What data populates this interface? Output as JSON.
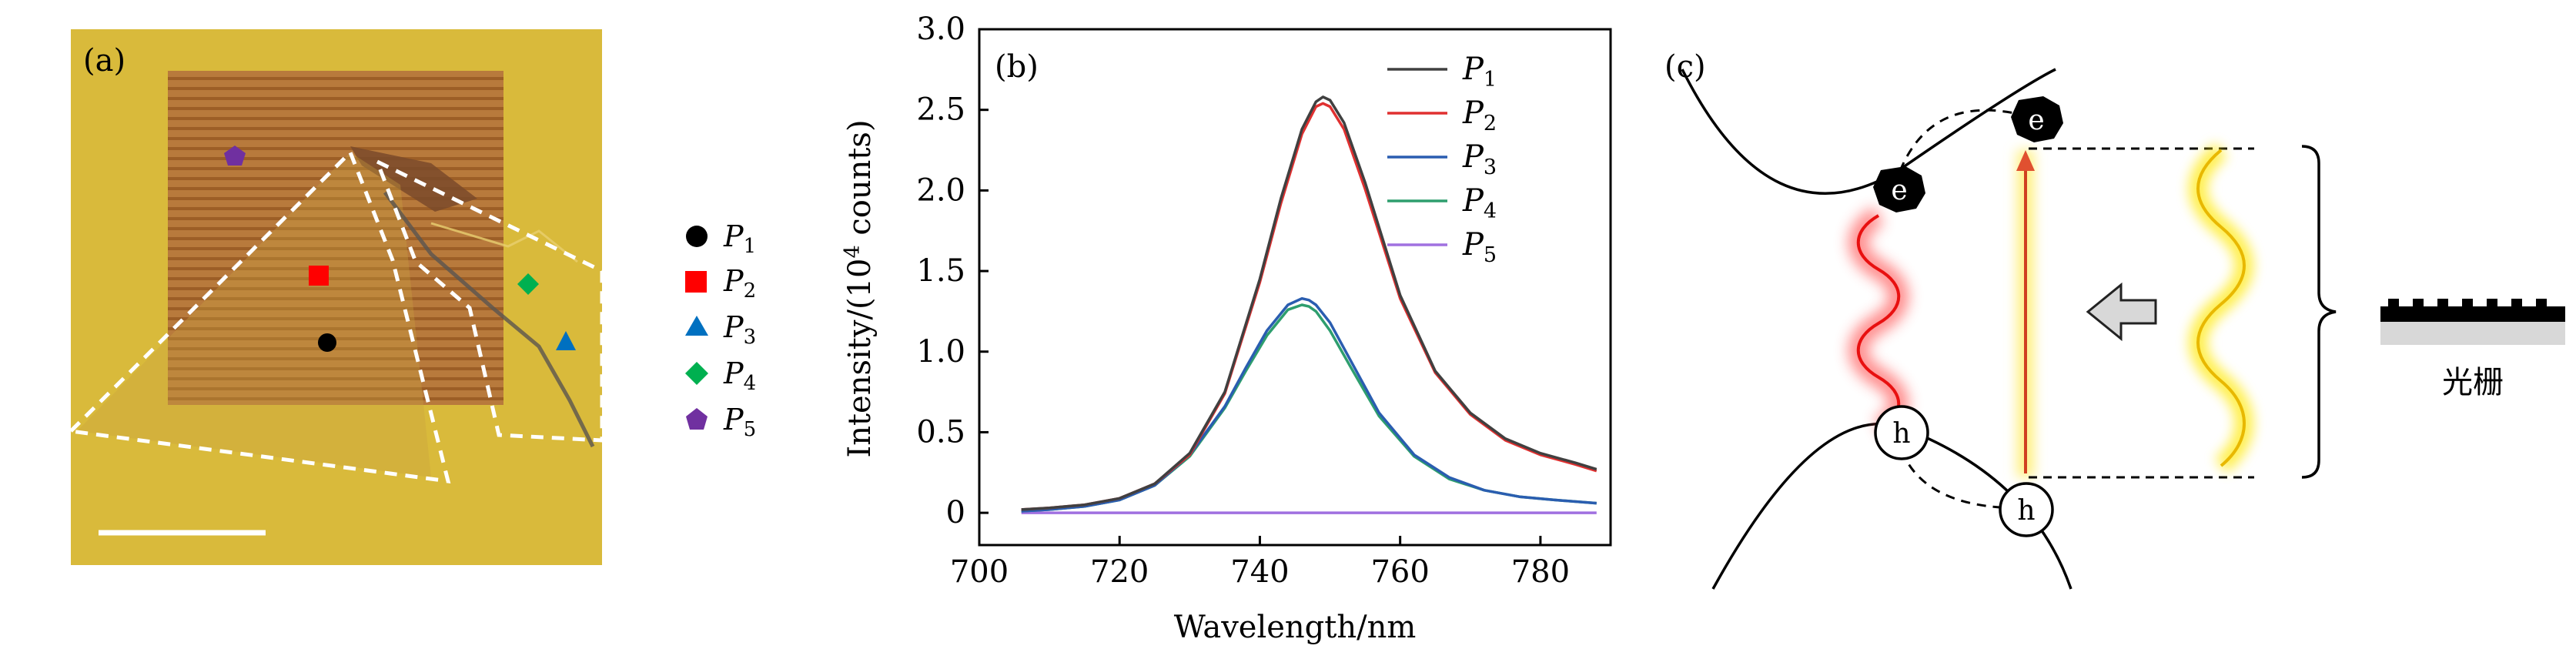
{
  "panel_a": {
    "label": "(a)",
    "legend": [
      {
        "name": "P",
        "sub": "1",
        "marker": "circle",
        "color": "#000000"
      },
      {
        "name": "P",
        "sub": "2",
        "marker": "square",
        "color": "#ff0000"
      },
      {
        "name": "P",
        "sub": "3",
        "marker": "triangle",
        "color": "#0070c0"
      },
      {
        "name": "P",
        "sub": "4",
        "marker": "diamond",
        "color": "#00b050"
      },
      {
        "name": "P",
        "sub": "5",
        "marker": "pentagon",
        "color": "#7030a0"
      }
    ],
    "colors": {
      "substrate": "#d8b93a",
      "grating": "#b5793a",
      "outline": "#ffffff"
    }
  },
  "panel_b": {
    "label": "(b)"
  },
  "panel_c": {
    "label": "(c)",
    "electron_label": "e",
    "hole_label": "h",
    "grating_label": "光栅",
    "colors": {
      "emission": "#ff2020",
      "excitation": "#ffe000",
      "arrow": "#d3d3d3"
    }
  },
  "chart_data": {
    "type": "line",
    "xlabel": "Wavelength/nm",
    "ylabel_main": "Intensity/(10",
    "ylabel_sup": "4",
    "ylabel_tail": " counts)",
    "xlim": [
      700,
      790
    ],
    "ylim": [
      -0.2,
      3.0
    ],
    "xticks": [
      700,
      720,
      740,
      760,
      780
    ],
    "yticks": [
      0,
      0.5,
      1.0,
      1.5,
      2.0,
      2.5,
      3.0
    ],
    "ytick_labels": [
      "0",
      "0.5",
      "1.0",
      "1.5",
      "2.0",
      "2.5",
      "3.0"
    ],
    "grid": false,
    "legend_position": "top-right",
    "series": [
      {
        "name": "P",
        "sub": "1",
        "color": "#404040",
        "x": [
          706,
          710,
          715,
          720,
          725,
          730,
          735,
          740,
          743,
          746,
          748,
          749,
          750,
          752,
          755,
          760,
          765,
          770,
          775,
          780,
          785,
          788
        ],
        "y": [
          0.02,
          0.03,
          0.05,
          0.09,
          0.18,
          0.37,
          0.75,
          1.45,
          1.95,
          2.38,
          2.55,
          2.58,
          2.56,
          2.42,
          2.05,
          1.35,
          0.88,
          0.62,
          0.46,
          0.37,
          0.31,
          0.27
        ]
      },
      {
        "name": "P",
        "sub": "2",
        "color": "#e03030",
        "x": [
          706,
          710,
          715,
          720,
          725,
          730,
          735,
          740,
          743,
          746,
          748,
          749,
          750,
          752,
          755,
          760,
          765,
          770,
          775,
          780,
          785,
          788
        ],
        "y": [
          0.02,
          0.03,
          0.05,
          0.09,
          0.18,
          0.36,
          0.74,
          1.43,
          1.92,
          2.35,
          2.52,
          2.54,
          2.52,
          2.38,
          2.01,
          1.33,
          0.87,
          0.61,
          0.45,
          0.36,
          0.3,
          0.26
        ]
      },
      {
        "name": "P",
        "sub": "3",
        "color": "#2a5db0",
        "x": [
          706,
          710,
          715,
          720,
          725,
          730,
          735,
          738,
          741,
          744,
          746,
          747,
          748,
          750,
          753,
          757,
          762,
          767,
          772,
          777,
          782,
          788
        ],
        "y": [
          0.01,
          0.02,
          0.04,
          0.08,
          0.17,
          0.36,
          0.66,
          0.9,
          1.13,
          1.29,
          1.33,
          1.32,
          1.29,
          1.18,
          0.94,
          0.62,
          0.36,
          0.22,
          0.14,
          0.1,
          0.08,
          0.06
        ]
      },
      {
        "name": "P",
        "sub": "4",
        "color": "#2e9e6e",
        "x": [
          706,
          710,
          715,
          720,
          725,
          730,
          735,
          738,
          741,
          744,
          746,
          747,
          748,
          750,
          753,
          757,
          762,
          767,
          772,
          777,
          782,
          788
        ],
        "y": [
          0.01,
          0.02,
          0.04,
          0.08,
          0.17,
          0.35,
          0.65,
          0.88,
          1.1,
          1.26,
          1.29,
          1.28,
          1.25,
          1.13,
          0.9,
          0.6,
          0.35,
          0.21,
          0.14,
          0.1,
          0.08,
          0.06
        ]
      },
      {
        "name": "P",
        "sub": "5",
        "color": "#a070e0",
        "x": [
          706,
          788
        ],
        "y": [
          0.0,
          0.0
        ]
      }
    ]
  }
}
